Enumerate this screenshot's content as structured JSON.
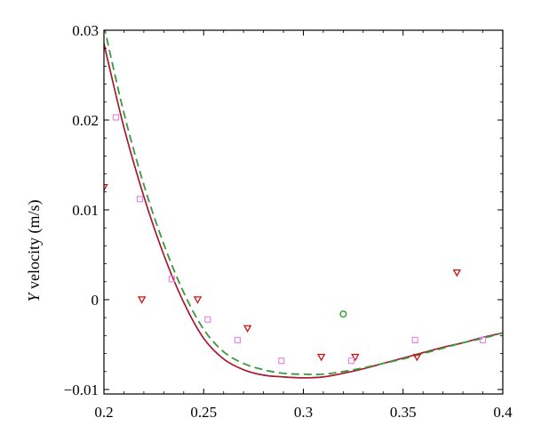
{
  "chart_data": {
    "type": "line",
    "title": "",
    "xlabel": "",
    "ylabel": {
      "italic": "Y",
      "rest": " velocity (m/s)"
    },
    "xlim": [
      0.2,
      0.4
    ],
    "ylim": [
      -0.0105,
      0.03
    ],
    "x_ticks": [
      {
        "value": 0.2,
        "label": "0.2"
      },
      {
        "value": 0.25,
        "label": "0.25"
      },
      {
        "value": 0.3,
        "label": "0.3"
      },
      {
        "value": 0.35,
        "label": "0.35"
      },
      {
        "value": 0.4,
        "label": "0.4"
      }
    ],
    "y_ticks": [
      {
        "value": 0.03,
        "label": "0.03"
      },
      {
        "value": 0.02,
        "label": "0.02"
      },
      {
        "value": 0.01,
        "label": "0.01"
      },
      {
        "value": 0.0,
        "label": "0"
      },
      {
        "value": -0.01,
        "label": "−0.01"
      }
    ],
    "grid": false,
    "series": [
      {
        "kind": "line",
        "style": "solid",
        "color": "#1a1aa6",
        "width": 1.6,
        "x": [
          0.2,
          0.21,
          0.22,
          0.23,
          0.24,
          0.25,
          0.26,
          0.27,
          0.28,
          0.29,
          0.3,
          0.31,
          0.32,
          0.33,
          0.34,
          0.35,
          0.36,
          0.37,
          0.38,
          0.39,
          0.4
        ],
        "values": [
          0.0285,
          0.0192,
          0.0115,
          0.005,
          -0.0003,
          -0.0043,
          -0.0066,
          -0.0078,
          -0.0084,
          -0.0086,
          -0.0087,
          -0.0086,
          -0.0082,
          -0.0077,
          -0.0071,
          -0.0065,
          -0.0059,
          -0.0053,
          -0.0048,
          -0.0042,
          -0.0037
        ]
      },
      {
        "kind": "line",
        "style": "solid",
        "color": "#cc1111",
        "width": 1.3,
        "x": [
          0.2,
          0.21,
          0.22,
          0.23,
          0.24,
          0.25,
          0.26,
          0.27,
          0.28,
          0.29,
          0.3,
          0.31,
          0.32,
          0.33,
          0.34,
          0.35,
          0.36,
          0.37,
          0.38,
          0.39,
          0.4
        ],
        "values": [
          0.0285,
          0.0192,
          0.0115,
          0.005,
          -0.0003,
          -0.0043,
          -0.0066,
          -0.0078,
          -0.0084,
          -0.0086,
          -0.0087,
          -0.0086,
          -0.0082,
          -0.0077,
          -0.0071,
          -0.0065,
          -0.0059,
          -0.0053,
          -0.0048,
          -0.0042,
          -0.0037
        ]
      },
      {
        "kind": "line",
        "style": "dashed",
        "color": "#3a9a3a",
        "width": 1.8,
        "x": [
          0.2,
          0.21,
          0.22,
          0.23,
          0.24,
          0.25,
          0.26,
          0.27,
          0.28,
          0.29,
          0.3,
          0.31,
          0.32,
          0.33,
          0.34,
          0.35,
          0.36,
          0.37,
          0.38,
          0.39,
          0.4
        ],
        "values": [
          0.0305,
          0.0208,
          0.0128,
          0.0062,
          0.0008,
          -0.0033,
          -0.0058,
          -0.0071,
          -0.0078,
          -0.0082,
          -0.0083,
          -0.0083,
          -0.008,
          -0.0076,
          -0.0071,
          -0.0066,
          -0.006,
          -0.0054,
          -0.0048,
          -0.0043,
          -0.0037
        ]
      },
      {
        "kind": "scatter",
        "marker": "triangle-down",
        "color": "#cc1111",
        "x": [
          0.2,
          0.219,
          0.247,
          0.272,
          0.309,
          0.326,
          0.357,
          0.377
        ],
        "values": [
          0.0125,
          0.0,
          0.0,
          -0.0032,
          -0.0064,
          -0.0064,
          -0.0064,
          0.003
        ]
      },
      {
        "kind": "scatter",
        "marker": "square",
        "color": "#e48ae4",
        "x": [
          0.206,
          0.218,
          0.234,
          0.252,
          0.267,
          0.289,
          0.324,
          0.356,
          0.39
        ],
        "values": [
          0.0203,
          0.0112,
          0.0023,
          -0.0022,
          -0.0045,
          -0.0068,
          -0.0068,
          -0.0045,
          -0.0045
        ]
      },
      {
        "kind": "scatter",
        "marker": "circle",
        "color": "#2aa02a",
        "x": [
          0.32
        ],
        "values": [
          -0.0016
        ]
      }
    ]
  }
}
